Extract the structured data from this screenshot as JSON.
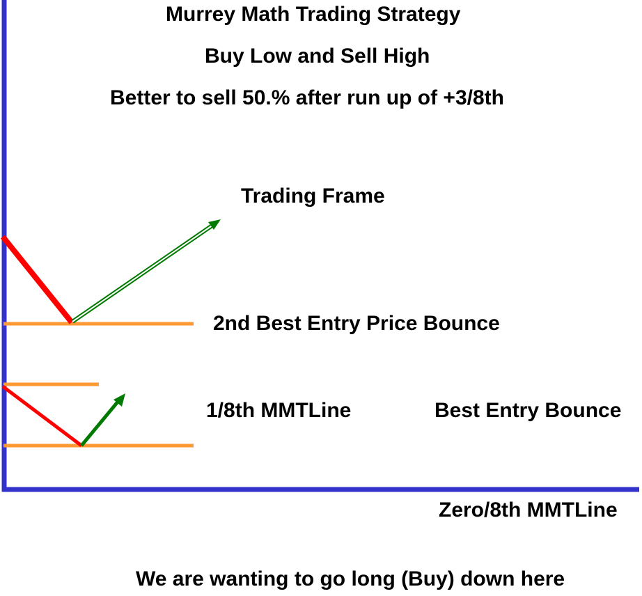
{
  "diagram": {
    "title": "Murrey Math Trading Strategy",
    "subtitle": "Buy Low and Sell High",
    "subtitle2": "Better to sell 50.% after run up of +3/8th",
    "trading_frame_label": "Trading Frame",
    "second_entry_label": "2nd Best Entry Price Bounce",
    "one_eighth_label": "1/8th MMTLine",
    "best_entry_label": "Best Entry Bounce",
    "zero_eighth_label": "Zero/8th MMTLine",
    "bottom_note": "We are wanting to go long (Buy) down here"
  },
  "colors": {
    "axis": "#3333cc",
    "level_line": "#ff9933",
    "down_move": "#ff0000",
    "up_move": "#007a00",
    "text": "#000000"
  }
}
